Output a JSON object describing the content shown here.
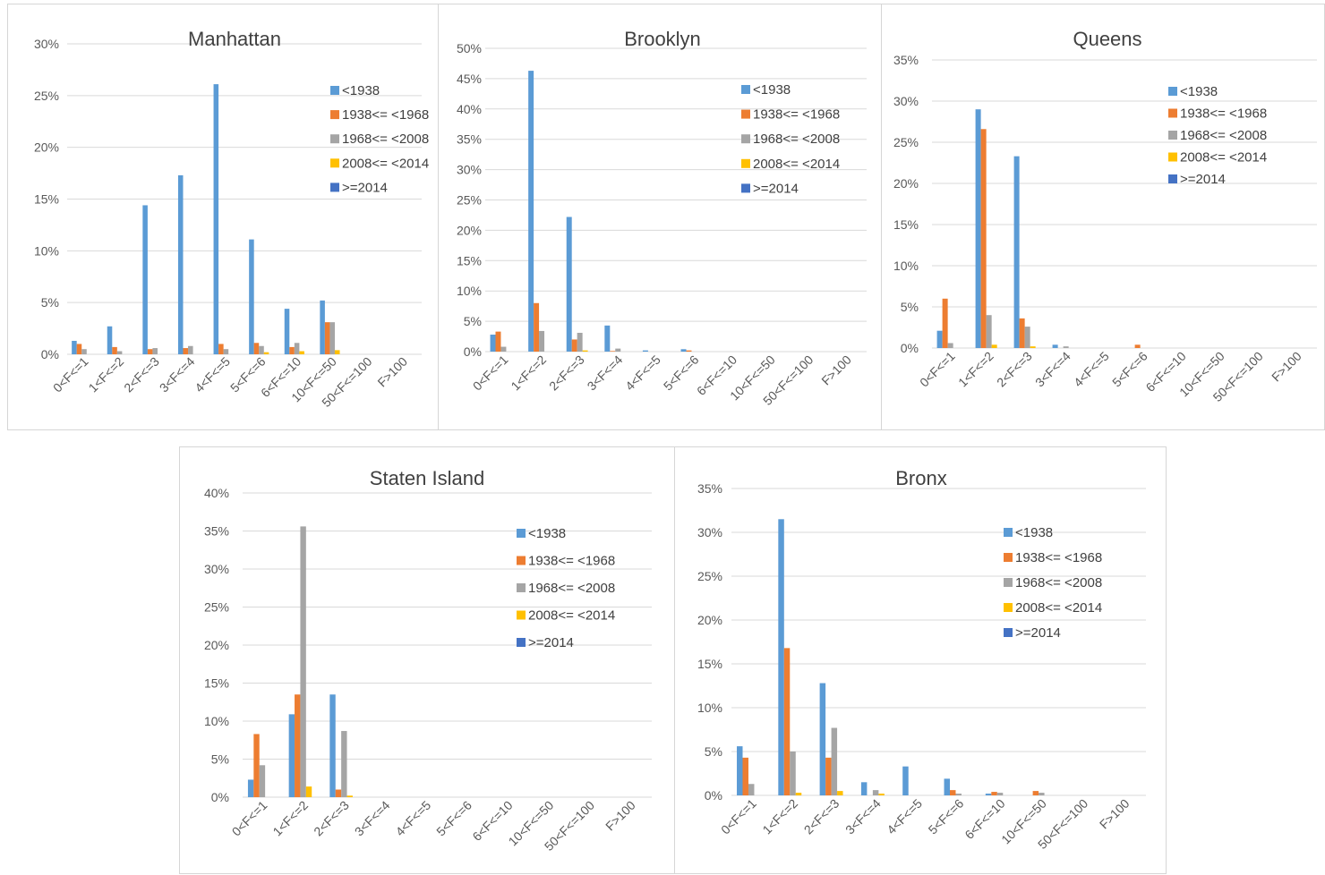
{
  "colors": [
    "#5B9BD5",
    "#ED7D31",
    "#A5A5A5",
    "#FFC000",
    "#4472C4"
  ],
  "legend": [
    "<1938",
    "1938<= <1968",
    "1968<= <2008",
    "2008<= <2014",
    ">=2014"
  ],
  "chart_data": [
    {
      "type": "bar",
      "title": "Manhattan",
      "categories": [
        "0<F<=1",
        "1<F<=2",
        "2<F<=3",
        "3<F<=4",
        "4<F<=5",
        "5<F<=6",
        "6<F<=10",
        "10<F<=50",
        "50<F<=100",
        "F>100"
      ],
      "yticks": [
        "0%",
        "5%",
        "10%",
        "15%",
        "20%",
        "25%",
        "30%"
      ],
      "ylim": [
        0,
        30
      ],
      "series": [
        {
          "name": "<1938",
          "values": [
            1.3,
            2.7,
            14.4,
            17.3,
            26.1,
            11.1,
            4.4,
            5.2,
            0,
            0
          ]
        },
        {
          "name": "1938<= <1968",
          "values": [
            1.0,
            0.7,
            0.5,
            0.6,
            1.0,
            1.1,
            0.7,
            3.1,
            0,
            0
          ]
        },
        {
          "name": "1968<= <2008",
          "values": [
            0.5,
            0.3,
            0.6,
            0.8,
            0.5,
            0.8,
            1.1,
            3.1,
            0,
            0
          ]
        },
        {
          "name": "2008<= <2014",
          "values": [
            0,
            0,
            0,
            0,
            0,
            0.2,
            0.3,
            0.4,
            0,
            0
          ]
        },
        {
          "name": ">=2014",
          "values": [
            0,
            0,
            0,
            0,
            0,
            0,
            0,
            0,
            0,
            0
          ]
        }
      ]
    },
    {
      "type": "bar",
      "title": "Brooklyn",
      "categories": [
        "0<F<=1",
        "1<F<=2",
        "2<F<=3",
        "3<F<=4",
        "4<F<=5",
        "5<F<=6",
        "6<F<=10",
        "10<F<=50",
        "50<F<=100",
        "F>100"
      ],
      "yticks": [
        "0%",
        "5%",
        "10%",
        "15%",
        "20%",
        "25%",
        "30%",
        "35%",
        "40%",
        "45%",
        "50%"
      ],
      "ylim": [
        0,
        50
      ],
      "series": [
        {
          "name": "<1938",
          "values": [
            2.8,
            46.3,
            22.2,
            4.3,
            0.2,
            0.4,
            0,
            0,
            0,
            0
          ]
        },
        {
          "name": "1938<= <1968",
          "values": [
            3.3,
            8.0,
            2.0,
            0.1,
            0,
            0.2,
            0,
            0,
            0,
            0
          ]
        },
        {
          "name": "1968<= <2008",
          "values": [
            0.8,
            3.4,
            3.1,
            0.5,
            0,
            0,
            0,
            0,
            0,
            0
          ]
        },
        {
          "name": "2008<= <2014",
          "values": [
            0,
            0,
            0.2,
            0,
            0,
            0,
            0,
            0,
            0,
            0
          ]
        },
        {
          "name": ">=2014",
          "values": [
            0,
            0,
            0,
            0,
            0,
            0,
            0,
            0,
            0,
            0
          ]
        }
      ]
    },
    {
      "type": "bar",
      "title": "Queens",
      "categories": [
        "0<F<=1",
        "1<F<=2",
        "2<F<=3",
        "3<F<=4",
        "4<F<=5",
        "5<F<=6",
        "6<F<=10",
        "10<F<=50",
        "50<F<=100",
        "F>100"
      ],
      "yticks": [
        "0%",
        "5%",
        "10%",
        "15%",
        "20%",
        "25%",
        "30%",
        "35%"
      ],
      "ylim": [
        0,
        35
      ],
      "series": [
        {
          "name": "<1938",
          "values": [
            2.1,
            29.0,
            23.3,
            0.4,
            0,
            0,
            0,
            0,
            0,
            0
          ]
        },
        {
          "name": "1938<= <1968",
          "values": [
            6.0,
            26.6,
            3.6,
            0,
            0,
            0.4,
            0,
            0,
            0,
            0
          ]
        },
        {
          "name": "1968<= <2008",
          "values": [
            0.6,
            4.0,
            2.6,
            0.2,
            0,
            0,
            0,
            0,
            0,
            0
          ]
        },
        {
          "name": "2008<= <2014",
          "values": [
            0,
            0.4,
            0.2,
            0,
            0,
            0,
            0,
            0,
            0,
            0
          ]
        },
        {
          "name": ">=2014",
          "values": [
            0,
            0,
            0,
            0,
            0,
            0,
            0,
            0,
            0,
            0
          ]
        }
      ]
    },
    {
      "type": "bar",
      "title": "Staten Island",
      "categories": [
        "0<F<=1",
        "1<F<=2",
        "2<F<=3",
        "3<F<=4",
        "4<F<=5",
        "5<F<=6",
        "6<F<=10",
        "10<F<=50",
        "50<F<=100",
        "F>100"
      ],
      "yticks": [
        "0%",
        "5%",
        "10%",
        "15%",
        "20%",
        "25%",
        "30%",
        "35%",
        "40%"
      ],
      "ylim": [
        0,
        40
      ],
      "series": [
        {
          "name": "<1938",
          "values": [
            2.3,
            10.9,
            13.5,
            0,
            0,
            0,
            0,
            0,
            0,
            0
          ]
        },
        {
          "name": "1938<= <1968",
          "values": [
            8.3,
            13.5,
            1.0,
            0,
            0,
            0,
            0,
            0,
            0,
            0
          ]
        },
        {
          "name": "1968<= <2008",
          "values": [
            4.2,
            35.6,
            8.7,
            0,
            0,
            0,
            0,
            0,
            0,
            0
          ]
        },
        {
          "name": "2008<= <2014",
          "values": [
            0,
            1.4,
            0.2,
            0,
            0,
            0,
            0,
            0,
            0,
            0
          ]
        },
        {
          "name": ">=2014",
          "values": [
            0,
            0,
            0,
            0,
            0,
            0,
            0,
            0,
            0,
            0
          ]
        }
      ]
    },
    {
      "type": "bar",
      "title": "Bronx",
      "categories": [
        "0<F<=1",
        "1<F<=2",
        "2<F<=3",
        "3<F<=4",
        "4<F<=5",
        "5<F<=6",
        "6<F<=10",
        "10<F<=50",
        "50<F<=100",
        "F>100"
      ],
      "yticks": [
        "0%",
        "5%",
        "10%",
        "15%",
        "20%",
        "25%",
        "30%",
        "35%"
      ],
      "ylim": [
        0,
        35
      ],
      "series": [
        {
          "name": "<1938",
          "values": [
            5.6,
            31.5,
            12.8,
            1.5,
            3.3,
            1.9,
            0.2,
            0,
            0,
            0
          ]
        },
        {
          "name": "1938<= <1968",
          "values": [
            4.3,
            16.8,
            4.3,
            0,
            0,
            0.6,
            0.4,
            0.5,
            0,
            0
          ]
        },
        {
          "name": "1968<= <2008",
          "values": [
            1.3,
            5.0,
            7.7,
            0.6,
            0,
            0.2,
            0.3,
            0.3,
            0,
            0
          ]
        },
        {
          "name": "2008<= <2014",
          "values": [
            0,
            0.3,
            0.5,
            0.2,
            0,
            0,
            0,
            0,
            0,
            0
          ]
        },
        {
          "name": ">=2014",
          "values": [
            0,
            0,
            0,
            0,
            0,
            0,
            0,
            0,
            0,
            0
          ]
        }
      ]
    }
  ]
}
